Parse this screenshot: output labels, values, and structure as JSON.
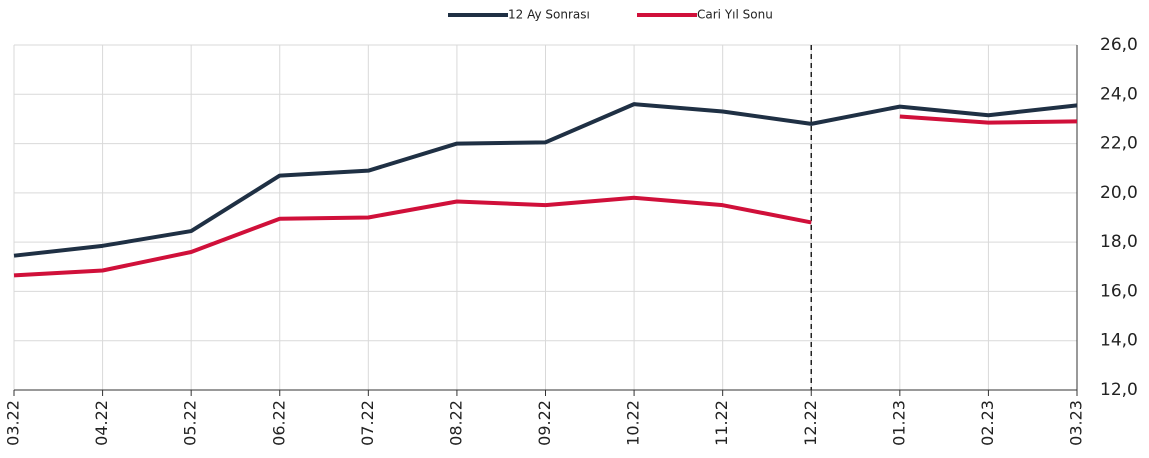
{
  "chart_data": {
    "type": "line",
    "categories": [
      "03.22",
      "04.22",
      "05.22",
      "06.22",
      "07.22",
      "08.22",
      "09.22",
      "10.22",
      "11.22",
      "12.22",
      "01.23",
      "02.23",
      "03.23"
    ],
    "series": [
      {
        "name": "12 Ay Sonrası",
        "color": "#1f3044",
        "values": [
          17.45,
          17.85,
          18.45,
          20.7,
          20.9,
          22.0,
          22.05,
          23.6,
          23.3,
          22.8,
          23.5,
          23.15,
          23.55
        ]
      },
      {
        "name": "Cari Yıl Sonu",
        "color": "#d0103a",
        "values": [
          16.65,
          16.85,
          17.6,
          18.95,
          19.0,
          19.65,
          19.5,
          19.8,
          19.5,
          18.8,
          23.1,
          22.85,
          22.9
        ],
        "split_after_divider": true
      }
    ],
    "divider_after_index": 9,
    "ylim": [
      12,
      26
    ],
    "yticks": [
      {
        "value": 12,
        "label": "12,0"
      },
      {
        "value": 14,
        "label": "14,0"
      },
      {
        "value": 16,
        "label": "16,0"
      },
      {
        "value": 18,
        "label": "18,0"
      },
      {
        "value": 20,
        "label": "20,0"
      },
      {
        "value": 22,
        "label": "22,0"
      },
      {
        "value": 24,
        "label": "24,0"
      },
      {
        "value": 26,
        "label": "26,0"
      }
    ],
    "y_axis_side": "right",
    "grid": true,
    "legend": "top"
  }
}
